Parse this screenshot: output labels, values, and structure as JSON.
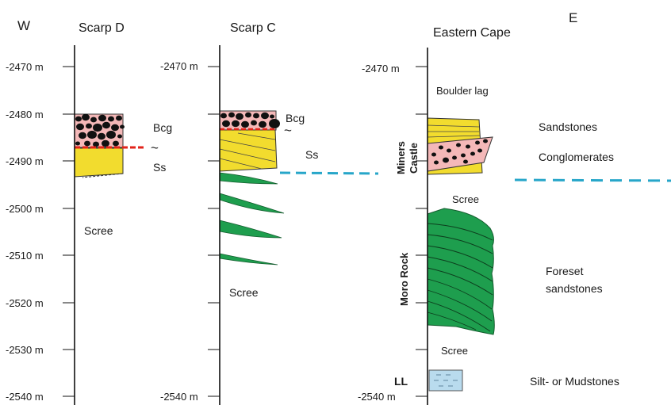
{
  "headers": {
    "west": "W",
    "east": "E",
    "scarp_d": "Scarp D",
    "scarp_c": "Scarp C",
    "eastern_cape": "Eastern Cape"
  },
  "scarp_d_ticks": [
    "-2470 m",
    "-2480 m",
    "-2490 m",
    "-2500 m",
    "-2510 m",
    "-2520 m",
    "-2530 m",
    "-2540 m"
  ],
  "scarp_c_ticks": {
    "top": "-2470 m",
    "bottom": "-2540 m"
  },
  "eastern_cape_ticks": {
    "top": "-2470 m",
    "bottom": "-2540 m"
  },
  "labels": {
    "bcg_d": "Bcg",
    "tilde_d": "~",
    "ss_d": "Ss",
    "scree_d": "Scree",
    "bcg_c": "Bcg",
    "tilde_c": "~",
    "ss_c": "Ss",
    "scree_c": "Scree",
    "boulder_lag": "Boulder lag",
    "scree_e1": "Scree",
    "scree_e2": "Scree",
    "miners_castle_1": "Miners",
    "miners_castle_2": "Castle",
    "moro_rock": "Moro Rock",
    "ll": "LL"
  },
  "legend": {
    "sandstones": "Sandstones",
    "conglomerates": "Conglomerates",
    "foreset_1": "Foreset",
    "foreset_2": "sandstones",
    "silt": "Silt- or Mudstones"
  },
  "colors": {
    "sandstone": "#f2dc2e",
    "conglomerate_matrix": "#f4b8b8",
    "clast": "#111111",
    "foreset": "#1e9e4e",
    "silt": "#b9dbee",
    "marker_red": "#e2231a",
    "correlation_line": "#27a6c9"
  }
}
